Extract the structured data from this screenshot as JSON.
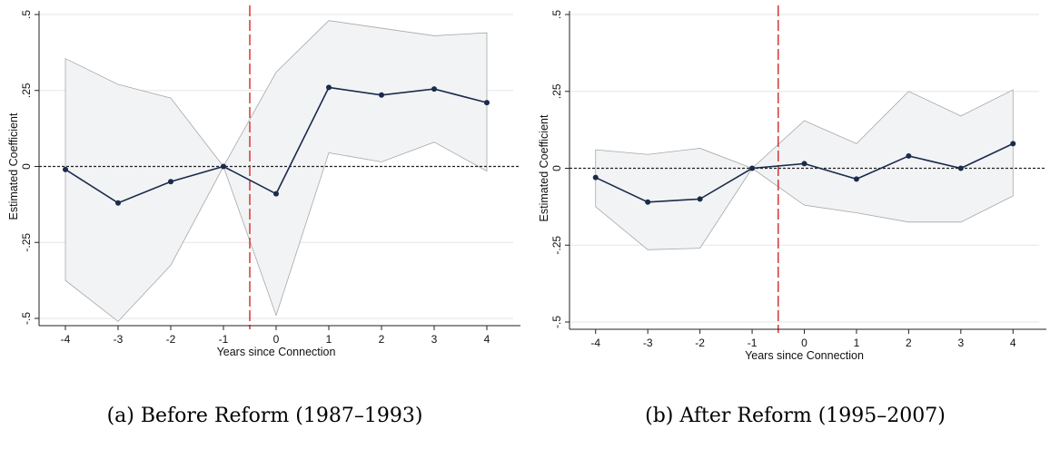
{
  "chart_data": [
    {
      "type": "line",
      "xlabel": "Years since Connection",
      "ylabel": "Estimated Coefficient",
      "x": [
        -4,
        -3,
        -2,
        -1,
        0,
        1,
        2,
        3,
        4
      ],
      "xticks": [
        "-4",
        "-3",
        "-2",
        "-1",
        "0",
        "1",
        "2",
        "3",
        "4"
      ],
      "yticks": [
        {
          "v": -0.5,
          "label": "-.5"
        },
        {
          "v": -0.25,
          "label": "-.25"
        },
        {
          "v": 0,
          "label": "0"
        },
        {
          "v": 0.25,
          "label": ".25"
        },
        {
          "v": 0.5,
          "label": ".5"
        }
      ],
      "ylim": [
        -0.5,
        0.5
      ],
      "xlim": [
        -4.5,
        4.5
      ],
      "series": [
        {
          "values": [
            -0.01,
            -0.12,
            -0.05,
            0.0,
            -0.09,
            0.26,
            0.235,
            0.255,
            0.21
          ]
        }
      ],
      "ci_upper": [
        0.355,
        0.27,
        0.225,
        0.0,
        0.31,
        0.48,
        0.455,
        0.43,
        0.44
      ],
      "ci_lower": [
        -0.375,
        -0.51,
        -0.325,
        0.0,
        -0.49,
        0.045,
        0.015,
        0.08,
        -0.015
      ],
      "reference_lines": {
        "horizontal_y": 0,
        "vertical_x": -0.5
      },
      "grid": true,
      "colors": {
        "line": "#1a2b4c",
        "band": "#f2f3f5",
        "band_edge": "#a8a8a8",
        "vline": "#d62728",
        "grid": "#e6e6e6"
      }
    },
    {
      "type": "line",
      "xlabel": "Years since Connection",
      "ylabel": "Estimated Coefficient",
      "x": [
        -4,
        -3,
        -2,
        -1,
        0,
        1,
        2,
        3,
        4
      ],
      "xticks": [
        "-4",
        "-3",
        "-2",
        "-1",
        "0",
        "1",
        "2",
        "3",
        "4"
      ],
      "yticks": [
        {
          "v": -0.5,
          "label": "-.5"
        },
        {
          "v": -0.25,
          "label": "-.25"
        },
        {
          "v": 0,
          "label": "0"
        },
        {
          "v": 0.25,
          "label": ".25"
        },
        {
          "v": 0.5,
          "label": ".5"
        }
      ],
      "ylim": [
        -0.5,
        0.5
      ],
      "xlim": [
        -4.5,
        4.5
      ],
      "series": [
        {
          "values": [
            -0.03,
            -0.11,
            -0.1,
            0.0,
            0.015,
            -0.035,
            0.04,
            0.0,
            0.08
          ]
        }
      ],
      "ci_upper": [
        0.06,
        0.045,
        0.065,
        0.0,
        0.155,
        0.08,
        0.25,
        0.17,
        0.255
      ],
      "ci_lower": [
        -0.125,
        -0.265,
        -0.26,
        0.0,
        -0.12,
        -0.145,
        -0.175,
        -0.175,
        -0.09
      ],
      "reference_lines": {
        "horizontal_y": 0,
        "vertical_x": -0.5
      },
      "grid": true,
      "colors": {
        "line": "#1a2b4c",
        "band": "#f2f3f5",
        "band_edge": "#a8a8a8",
        "vline": "#d62728",
        "grid": "#e6e6e6"
      }
    }
  ],
  "captions": {
    "a": "(a) Before Reform (1987–1993)",
    "b": "(b) After Reform (1995–2007)"
  }
}
